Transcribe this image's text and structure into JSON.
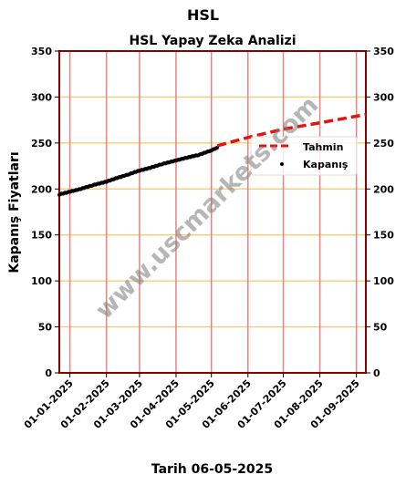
{
  "page": {
    "title": "HSL",
    "footer": "Tarih 06-05-2025"
  },
  "watermark": "www.uscmarkets.com",
  "colors": {
    "frame": "#8b0000",
    "hgrid": "#f5c860",
    "vgrid": "#f08080",
    "actual": "#000000",
    "forecast": "#e3130f"
  },
  "chart_data": {
    "type": "line",
    "title": "HSL Yapay Zeka Analizi",
    "xlabel": "",
    "ylabel": "Kapanış Fiyatları",
    "ylim": [
      0,
      350
    ],
    "xlim": [
      "2024-12-23",
      "2025-09-09"
    ],
    "yticks": [
      0,
      50,
      100,
      150,
      200,
      250,
      300,
      350
    ],
    "xticks": [
      "01-01-2025",
      "01-02-2025",
      "01-03-2025",
      "01-04-2025",
      "01-05-2025",
      "01-06-2025",
      "01-07-2025",
      "01-08-2025",
      "01-09-2025"
    ],
    "hgrid": true,
    "vgrid": true,
    "legend_position": "right-upper",
    "legend": [
      {
        "label": "Tahmin",
        "style": "dashed-line",
        "series": "forecast"
      },
      {
        "label": "Kapanış",
        "style": "dot",
        "series": "actual"
      }
    ],
    "series": [
      {
        "name": "Kapanış",
        "kind": "scatter",
        "x": [
          "2024-12-23",
          "2025-01-01",
          "2025-01-10",
          "2025-01-20",
          "2025-02-01",
          "2025-02-10",
          "2025-02-20",
          "2025-03-01",
          "2025-03-10",
          "2025-03-20",
          "2025-04-01",
          "2025-04-10",
          "2025-04-20",
          "2025-05-01",
          "2025-05-06"
        ],
        "y": [
          194,
          197,
          200,
          204,
          208,
          212,
          216,
          220,
          223,
          227,
          231,
          234,
          237,
          242,
          245
        ]
      },
      {
        "name": "Tahmin",
        "kind": "dashed-line",
        "x": [
          "2025-05-06",
          "2025-06-01",
          "2025-07-01",
          "2025-08-01",
          "2025-09-09"
        ],
        "y": [
          247,
          256,
          265,
          272,
          281
        ]
      }
    ]
  }
}
